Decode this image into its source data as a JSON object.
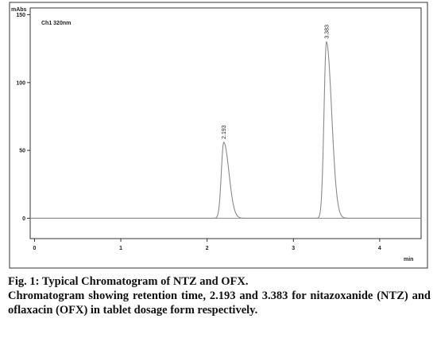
{
  "chart_data": {
    "type": "line",
    "title": "Ch1 320nm",
    "ylabel": "mAbs",
    "xlabel": "min",
    "xlim": [
      -0.05,
      4.48
    ],
    "ylim": [
      -15,
      155
    ],
    "x_ticks": [
      "0",
      "1",
      "2",
      "3",
      "4"
    ],
    "y_ticks": [
      "0",
      "50",
      "100",
      "150"
    ],
    "baseline": 0,
    "grid": false,
    "legend": "none",
    "line_color": "#8a8a8a",
    "series": [
      {
        "peaks": [
          {
            "label": "2.193",
            "retention_time": 2.193,
            "height": 56
          },
          {
            "label": "3.383",
            "retention_time": 3.383,
            "height": 130
          }
        ]
      }
    ]
  },
  "caption": {
    "title": "Fig. 1: Typical Chromatogram of NTZ and OFX.",
    "body": "Chromatogram showing retention time, 2.193 and 3.383 for nitazoxanide (NTZ) and oflaxacin (OFX) in tablet dosage form respectively."
  }
}
